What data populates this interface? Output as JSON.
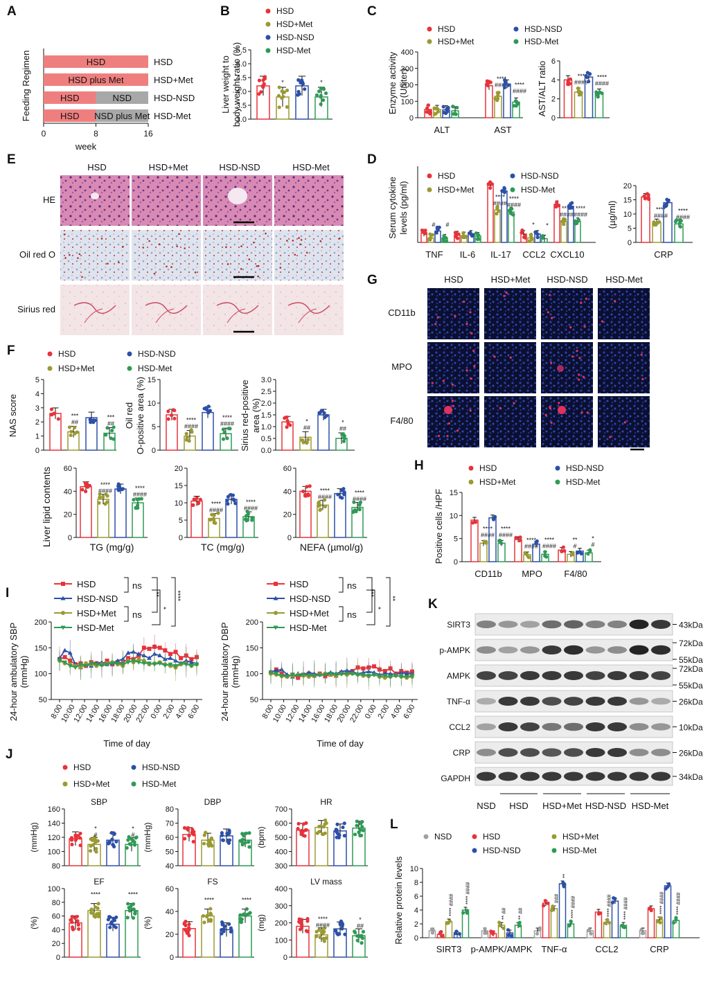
{
  "colors": {
    "HSD": "#e8323a",
    "HSD+Met": "#9a9a32",
    "HSD-NSD": "#2c4fa8",
    "HSD-Met": "#2e9a55",
    "NSD": "#a0a0a0",
    "band_hsd": "#ef7f7f",
    "band_nsd": "#a8a8a8"
  },
  "legend4": [
    "HSD",
    "HSD+Met",
    "HSD-NSD",
    "HSD-Met"
  ],
  "legend5": [
    "NSD",
    "HSD",
    "HSD-NSD",
    "HSD+Met",
    "HSD-Met"
  ],
  "A": {
    "letter": "A",
    "ylabel": "Feeding Regimen",
    "xlabel": "week",
    "ticks": [
      "0",
      "8",
      "16"
    ],
    "rows": [
      {
        "bands": [
          {
            "label": "HSD",
            "from": 0,
            "to": 16,
            "kind": "hsd"
          }
        ],
        "name": "HSD"
      },
      {
        "bands": [
          {
            "label": "HSD plus Met",
            "from": 0,
            "to": 16,
            "kind": "hsd"
          }
        ],
        "name": "HSD+Met"
      },
      {
        "bands": [
          {
            "label": "HSD",
            "from": 0,
            "to": 8,
            "kind": "hsd"
          },
          {
            "label": "NSD",
            "from": 8,
            "to": 16,
            "kind": "nsd"
          }
        ],
        "name": "HSD-NSD"
      },
      {
        "bands": [
          {
            "label": "HSD",
            "from": 0,
            "to": 8,
            "kind": "hsd"
          },
          {
            "label": "NSD plus Met",
            "from": 8,
            "to": 16,
            "kind": "nsd"
          }
        ],
        "name": "HSD-Met"
      }
    ]
  },
  "B": {
    "letter": "B",
    "ylabel1": "Liver weight to",
    "ylabel2": "body weight ratio (%)",
    "ticks": [
      "3.0",
      "3.5",
      "4.0",
      "4.5",
      "5.0",
      "5.5"
    ],
    "ylim": [
      3.0,
      5.5
    ],
    "values": [
      4.2,
      3.8,
      4.2,
      3.8
    ],
    "errors": [
      0.4,
      0.25,
      0.45,
      0.3
    ],
    "sig": [
      "",
      "*",
      "",
      "*"
    ]
  },
  "C": {
    "letter": "C",
    "ylabel1": "Enzyme activity",
    "ylabel2": "(U/liter)",
    "ticks": [
      "0",
      "100",
      "200",
      "300",
      "400"
    ],
    "ylim": [
      0,
      400
    ],
    "groups": [
      {
        "label": "ALT",
        "values": [
          50,
          50,
          48,
          42
        ],
        "sig": [
          "",
          "",
          "",
          ""
        ]
      },
      {
        "label": "AST",
        "values": [
          195,
          130,
          205,
          95
        ],
        "sig": [
          "",
          "****\n####",
          "",
          "****\n####"
        ]
      }
    ],
    "ratio_ylabel": "AST/ALT ratio",
    "ratio_ticks": [
      "0",
      "2",
      "4",
      "6"
    ],
    "ratio_ylim": [
      0,
      6
    ],
    "ratio_values": [
      4.0,
      2.7,
      4.3,
      2.6
    ],
    "ratio_sig": [
      "",
      "***\n####",
      "",
      "****\n####"
    ]
  },
  "D": {
    "letter": "D",
    "ylabel1": "Serum cytokine",
    "ylabel2": "levels (pg/ml)",
    "groups": [
      {
        "label": "TNF",
        "values": [
          25,
          12,
          30,
          12
        ],
        "sig": [
          "",
          "#",
          "",
          "#"
        ]
      },
      {
        "label": "IL-6",
        "values": [
          20,
          18,
          22,
          17
        ],
        "sig": [
          "",
          "",
          "",
          ""
        ]
      },
      {
        "label": "IL-17",
        "values": [
          150,
          85,
          135,
          80
        ],
        "sig": [
          "",
          "****\n####",
          "",
          "****\n####"
        ]
      },
      {
        "label": "CCL2",
        "values": [
          22,
          12,
          22,
          10
        ],
        "sig": [
          "",
          "*",
          "",
          "*"
        ]
      },
      {
        "label": "CXCL10",
        "values": [
          100,
          55,
          95,
          55
        ],
        "sig": [
          "",
          "****\n####",
          "",
          "****\n####"
        ]
      }
    ],
    "ylim": [
      0,
      200
    ],
    "crp_ylabel": "(µg/ml)",
    "crp_label": "CRP",
    "crp_ticks": [
      "0",
      "5",
      "10",
      "15",
      "20"
    ],
    "crp_ylim": [
      0,
      20
    ],
    "crp_values": [
      16,
      7,
      14,
      6.5
    ],
    "crp_sig": [
      "",
      "****\n####",
      "",
      "****\n####"
    ]
  },
  "E": {
    "letter": "E",
    "columns": [
      "HSD",
      "HSD+Met",
      "HSD-NSD",
      "HSD-Met"
    ],
    "rows": [
      "HE",
      "Oil red O",
      "Sirius red"
    ]
  },
  "F": {
    "letter": "F",
    "top": [
      {
        "ylabel1": "NAS score",
        "ylabel2": "",
        "ticks": [
          "0",
          "1",
          "2",
          "3",
          "4",
          "5"
        ],
        "ylim": [
          0,
          5
        ],
        "values": [
          2.6,
          1.3,
          2.3,
          1.2
        ],
        "sig": [
          "",
          "***\n##",
          "",
          "***\n##"
        ]
      },
      {
        "ylabel1": "Oil red",
        "ylabel2": "O-positive area (%)",
        "ticks": [
          "0",
          "5",
          "10",
          "15"
        ],
        "ylim": [
          0,
          15
        ],
        "values": [
          7.5,
          3,
          8,
          3.5
        ],
        "sig": [
          "",
          "****\n####",
          "",
          "****\n####"
        ]
      },
      {
        "ylabel1": "Sirius red-positive",
        "ylabel2": "area (%)",
        "ticks": [
          "0.0",
          "0.5",
          "1.0",
          "1.5",
          "2.0",
          "2.5",
          "3.0"
        ],
        "ylim": [
          0,
          3
        ],
        "values": [
          1.2,
          0.55,
          1.5,
          0.5
        ],
        "sig": [
          "",
          "*\n##",
          "",
          "*\n##"
        ]
      }
    ],
    "bottom": [
      {
        "label": "TG (mg/g)",
        "ticks": [
          "0",
          "20",
          "40",
          "60"
        ],
        "ylim": [
          0,
          60
        ],
        "values": [
          44,
          33,
          42,
          30
        ],
        "sig": [
          "",
          "****\n####",
          "",
          "****\n####"
        ]
      },
      {
        "label": "TC (mg/g)",
        "ticks": [
          "0",
          "5",
          "10",
          "15",
          "20"
        ],
        "ylim": [
          0,
          20
        ],
        "values": [
          10.5,
          5.5,
          11,
          6
        ],
        "sig": [
          "",
          "****\n####",
          "",
          "****\n####"
        ]
      },
      {
        "label": "NEFA (µmol/g)",
        "ticks": [
          "0",
          "20",
          "40",
          "60"
        ],
        "ylim": [
          0,
          60
        ],
        "values": [
          40,
          28,
          38,
          26
        ],
        "sig": [
          "",
          "****\n####",
          "",
          "****\n####"
        ]
      }
    ],
    "bottom_ylabel": "Liver lipid contents"
  },
  "G": {
    "letter": "G",
    "columns": [
      "HSD",
      "HSD+Met",
      "HSD-NSD",
      "HSD-Met"
    ],
    "rows": [
      "CD11b",
      "MPO",
      "F4/80"
    ]
  },
  "H": {
    "letter": "H",
    "ylabel": "Positive cells /HPF",
    "ticks": [
      "0",
      "5",
      "10",
      "15"
    ],
    "ylim": [
      0,
      15
    ],
    "groups": [
      {
        "label": "CD11b",
        "values": [
          9,
          4,
          9.5,
          4
        ],
        "sig": [
          "",
          "****\n####",
          "",
          "****\n####"
        ]
      },
      {
        "label": "MPO",
        "values": [
          4.8,
          1.5,
          3.8,
          1.6
        ],
        "sig": [
          "",
          "****\n####",
          "",
          "****\n####"
        ]
      },
      {
        "label": "F4/80",
        "values": [
          2.5,
          1.6,
          2.3,
          1.9
        ],
        "sig": [
          "",
          "**\n#",
          "",
          "*\n#"
        ]
      }
    ]
  },
  "I": {
    "letter": "I",
    "xlabel": "Time of day",
    "xticks": [
      "8:00",
      "10:00",
      "12:00",
      "14:00",
      "16:00",
      "18:00",
      "20:00",
      "22:00",
      "0:00",
      "2:00",
      "4:00",
      "6:00"
    ],
    "legend": [
      "HSD",
      "HSD-NSD",
      "HSD+Met",
      "HSD-Met"
    ],
    "sbp": {
      "ylabel1": "24-hour ambulatory SBP",
      "ylabel2": "(mmHg)",
      "ticks": [
        "50",
        "100",
        "150",
        "200"
      ],
      "ylim": [
        50,
        200
      ],
      "brackets": [
        "ns",
        "ns",
        "**",
        "*",
        "****"
      ],
      "series": {
        "HSD": [
          128,
          132,
          125,
          118,
          120,
          115,
          122,
          120,
          118,
          125,
          118,
          122,
          120,
          130,
          128,
          135,
          150,
          148,
          152,
          150,
          145,
          138,
          142,
          130,
          135,
          128,
          132
        ],
        "HSD-NSD": [
          130,
          145,
          140,
          118,
          112,
          118,
          115,
          120,
          122,
          118,
          120,
          125,
          128,
          140,
          142,
          138,
          135,
          130,
          138,
          135,
          128,
          130,
          125,
          120,
          125,
          122,
          120
        ],
        "HSD+Met": [
          125,
          120,
          118,
          115,
          112,
          120,
          118,
          115,
          118,
          120,
          122,
          118,
          115,
          125,
          122,
          128,
          125,
          118,
          120,
          122,
          118,
          115,
          112,
          118,
          120,
          115,
          118
        ],
        "HSD-Met": [
          126,
          122,
          115,
          112,
          118,
          115,
          120,
          118,
          116,
          118,
          120,
          120,
          118,
          122,
          125,
          122,
          120,
          120,
          118,
          120,
          116,
          118,
          115,
          120,
          118,
          116,
          118
        ]
      }
    },
    "dbp": {
      "ylabel1": "24-hour ambulatory DBP",
      "ylabel2": "(mmHg)",
      "ticks": [
        "50",
        "100",
        "150",
        "200"
      ],
      "ylim": [
        50,
        200
      ],
      "brackets": [
        "ns",
        "ns",
        "***",
        "*",
        "**"
      ],
      "series": {
        "HSD": [
          102,
          108,
          100,
          95,
          98,
          92,
          98,
          100,
          96,
          100,
          95,
          98,
          96,
          102,
          100,
          105,
          112,
          110,
          112,
          114,
          108,
          105,
          110,
          100,
          105,
          102,
          104
        ],
        "HSD-NSD": [
          104,
          106,
          108,
          98,
          94,
          100,
          98,
          102,
          100,
          98,
          100,
          102,
          100,
          104,
          106,
          104,
          100,
          102,
          104,
          102,
          98,
          100,
          100,
          98,
          102,
          100,
          100
        ],
        "HSD+Met": [
          100,
          98,
          95,
          94,
          96,
          98,
          96,
          94,
          96,
          98,
          100,
          98,
          96,
          100,
          98,
          100,
          98,
          96,
          95,
          98,
          94,
          92,
          94,
          96,
          94,
          92,
          94
        ],
        "HSD-Met": [
          102,
          100,
          96,
          95,
          98,
          96,
          98,
          97,
          96,
          97,
          98,
          100,
          98,
          99,
          100,
          100,
          98,
          98,
          96,
          98,
          95,
          96,
          94,
          96,
          95,
          94,
          96
        ]
      }
    }
  },
  "J": {
    "letter": "J",
    "panels": [
      {
        "title": "SBP",
        "unit": "(mmHg)",
        "ticks": [
          "80",
          "100",
          "120",
          "140",
          "160"
        ],
        "ylim": [
          80,
          160
        ],
        "values": [
          118,
          110,
          116,
          110
        ],
        "sig": [
          "",
          "*\n#",
          "",
          "*\n#"
        ]
      },
      {
        "title": "DBP",
        "unit": "(mmHg)",
        "ticks": [
          "40",
          "50",
          "60",
          "70",
          "80"
        ],
        "ylim": [
          40,
          80
        ],
        "values": [
          62,
          58,
          61,
          58
        ],
        "sig": [
          "",
          "",
          "",
          ""
        ]
      },
      {
        "title": "HR",
        "unit": "(bpm)",
        "ticks": [
          "300",
          "400",
          "500",
          "600",
          "700"
        ],
        "ylim": [
          300,
          700
        ],
        "values": [
          550,
          570,
          545,
          565
        ],
        "sig": [
          "",
          "",
          "",
          ""
        ]
      },
      {
        "title": "EF",
        "unit": "(%)",
        "ticks": [
          "0",
          "20",
          "40",
          "60",
          "80",
          "100"
        ],
        "ylim": [
          0,
          100
        ],
        "values": [
          50,
          68,
          48,
          68
        ],
        "sig": [
          "",
          "****",
          "",
          "****"
        ]
      },
      {
        "title": "FS",
        "unit": "(%)",
        "ticks": [
          "0",
          "20",
          "40",
          "60"
        ],
        "ylim": [
          0,
          60
        ],
        "values": [
          25,
          36,
          24,
          36
        ],
        "sig": [
          "",
          "****",
          "",
          "****"
        ]
      },
      {
        "title": "LV mass",
        "unit": "(mg)",
        "ticks": [
          "0",
          "100",
          "200",
          "300",
          "400"
        ],
        "ylim": [
          0,
          400
        ],
        "values": [
          180,
          130,
          165,
          125
        ],
        "sig": [
          "",
          "****\n####",
          "",
          "*\n##"
        ]
      }
    ]
  },
  "K": {
    "letter": "K",
    "rows": [
      {
        "name": "SIRT3",
        "kda": [
          "43kDa"
        ],
        "intensity": [
          0.5,
          0.4,
          0.35,
          0.6,
          0.65,
          0.5,
          0.5,
          0.95,
          0.85
        ]
      },
      {
        "name": "p-AMPK",
        "kda": [
          "72kDa",
          "55kDa"
        ],
        "intensity": [
          0.45,
          0.35,
          0.4,
          0.85,
          0.9,
          0.4,
          0.45,
          0.95,
          0.9
        ]
      },
      {
        "name": "AMPK",
        "kda": [
          "72kDa",
          "55kDa"
        ],
        "intensity": [
          0.8,
          0.8,
          0.85,
          0.85,
          0.85,
          0.8,
          0.85,
          0.85,
          0.8
        ]
      },
      {
        "name": "TNF-α",
        "kda": [
          "26kDa"
        ],
        "intensity": [
          0.3,
          0.85,
          0.85,
          0.75,
          0.8,
          0.85,
          0.85,
          0.4,
          0.3
        ]
      },
      {
        "name": "CCL2",
        "kda": [
          "10kDa"
        ],
        "intensity": [
          0.35,
          0.85,
          0.8,
          0.55,
          0.6,
          0.85,
          0.85,
          0.45,
          0.4
        ]
      },
      {
        "name": "CRP",
        "kda": [
          "26kDa"
        ],
        "intensity": [
          0.45,
          0.75,
          0.75,
          0.7,
          0.75,
          0.85,
          0.85,
          0.45,
          0.45
        ]
      },
      {
        "name": "GAPDH",
        "kda": [
          "34kDa"
        ],
        "intensity": [
          0.85,
          0.85,
          0.85,
          0.85,
          0.85,
          0.85,
          0.85,
          0.85,
          0.85
        ]
      }
    ],
    "groups": [
      "NSD",
      "HSD",
      "HSD+Met",
      "HSD-NSD",
      "HSD-Met"
    ]
  },
  "L": {
    "letter": "L",
    "ylabel": "Relative protein levels",
    "ticks": [
      "0",
      "2",
      "4",
      "6",
      "8",
      "10"
    ],
    "ylim": [
      0,
      10
    ],
    "order": [
      "NSD",
      "HSD",
      "HSD+Met",
      "HSD-NSD",
      "HSD-Met"
    ],
    "groups": [
      {
        "label": "SIRT3",
        "values": [
          1.0,
          0.5,
          2.3,
          0.5,
          4.0
        ],
        "sig": [
          "",
          "",
          "****\n####",
          "",
          "****\n####"
        ]
      },
      {
        "label": "p-AMPK/AMPK",
        "values": [
          1.0,
          0.6,
          1.8,
          0.7,
          1.8
        ],
        "sig": [
          "",
          "",
          "**\n##",
          "",
          "**\n##"
        ]
      },
      {
        "label": "TNF-α",
        "values": [
          1.0,
          5.0,
          4.2,
          7.8,
          2.0
        ],
        "sig": [
          "",
          "",
          "###",
          "**",
          "****\n####"
        ]
      },
      {
        "label": "CCL2",
        "values": [
          1.0,
          3.7,
          2.2,
          5.3,
          1.8
        ],
        "sig": [
          "",
          "",
          "****\n####",
          "",
          "****\n####"
        ]
      },
      {
        "label": "CRP",
        "values": [
          1.0,
          4.2,
          2.6,
          7.5,
          2.5
        ],
        "sig": [
          "",
          "",
          "****\n####",
          "",
          "****\n####"
        ]
      }
    ]
  }
}
